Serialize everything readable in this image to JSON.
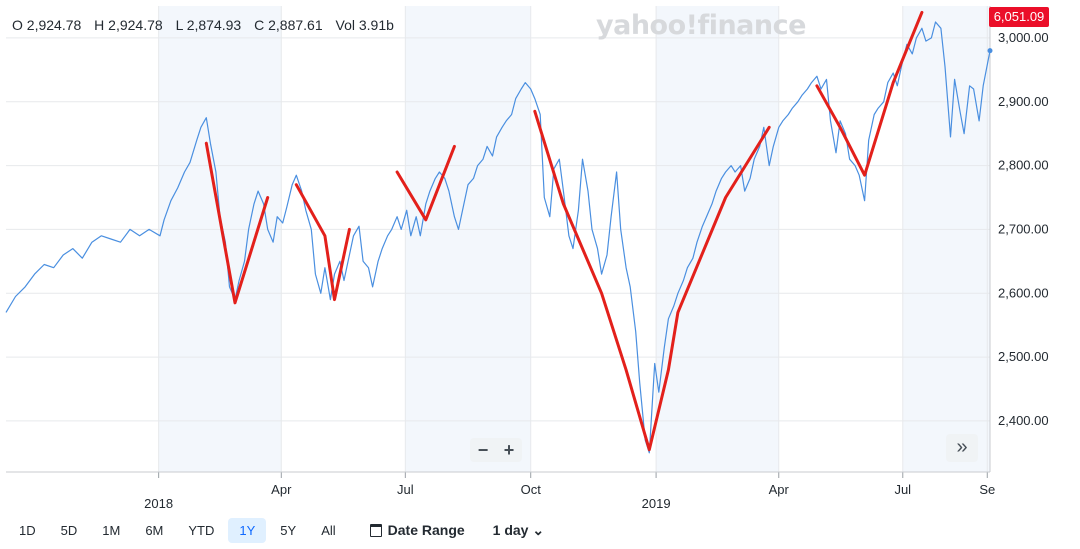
{
  "ohlc": {
    "open": "O 2,924.78",
    "high": "H 2,924.78",
    "low": "L 2,874.93",
    "close": "C 2,887.61",
    "volume": "Vol 3.91b"
  },
  "watermark": "yahoo!finance",
  "price_badge": "6,051.09",
  "zoom": {
    "minus": "−",
    "plus": "+"
  },
  "expand_label": "»",
  "ranges": [
    {
      "label": "1D",
      "active": false
    },
    {
      "label": "5D",
      "active": false
    },
    {
      "label": "1M",
      "active": false
    },
    {
      "label": "6M",
      "active": false
    },
    {
      "label": "YTD",
      "active": false
    },
    {
      "label": "1Y",
      "active": true
    },
    {
      "label": "5Y",
      "active": false
    },
    {
      "label": "All",
      "active": false
    }
  ],
  "date_range_label": "Date Range",
  "interval_label": "1 day ⌄",
  "colors": {
    "line": "#4a8fe0",
    "annotation": "#e3201b",
    "shade": "#f3f7fc",
    "badge": "#eb0f29",
    "grid": "#e7e9ec"
  },
  "chart_data": {
    "type": "line",
    "ylim": [
      2320,
      3050
    ],
    "yticks": [
      {
        "v": 3000,
        "label": "3,000.00"
      },
      {
        "v": 2900,
        "label": "2,900.00"
      },
      {
        "v": 2800,
        "label": "2,800.00"
      },
      {
        "v": 2700,
        "label": "2,700.00"
      },
      {
        "v": 2600,
        "label": "2,600.00"
      },
      {
        "v": 2500,
        "label": "2,500.00"
      },
      {
        "v": 2400,
        "label": "2,400.00"
      }
    ],
    "xlim": [
      "2017-09-11",
      "2019-09-03"
    ],
    "xticks": [
      {
        "date": "2018-01-01",
        "label": ""
      },
      {
        "date": "2018-04-01",
        "label": "Apr"
      },
      {
        "date": "2018-07-01",
        "label": "Jul"
      },
      {
        "date": "2018-10-01",
        "label": "Oct"
      },
      {
        "date": "2019-01-01",
        "label": ""
      },
      {
        "date": "2019-04-01",
        "label": "Apr"
      },
      {
        "date": "2019-07-01",
        "label": "Jul"
      },
      {
        "date": "2019-09-01",
        "label": "Se"
      }
    ],
    "years": [
      {
        "date": "2018-01-01",
        "label": "2018"
      },
      {
        "date": "2019-01-01",
        "label": "2019"
      }
    ],
    "shaded_ranges": [
      [
        "2018-01-01",
        "2018-04-01"
      ],
      [
        "2018-07-01",
        "2018-10-01"
      ],
      [
        "2019-01-01",
        "2019-04-01"
      ],
      [
        "2019-07-01",
        "2019-09-03"
      ]
    ],
    "series": [
      {
        "points": [
          [
            "2017-09-11",
            2570
          ],
          [
            "2017-09-18",
            2595
          ],
          [
            "2017-09-25",
            2610
          ],
          [
            "2017-10-02",
            2630
          ],
          [
            "2017-10-09",
            2645
          ],
          [
            "2017-10-16",
            2640
          ],
          [
            "2017-10-23",
            2660
          ],
          [
            "2017-10-30",
            2670
          ],
          [
            "2017-11-06",
            2655
          ],
          [
            "2017-11-13",
            2680
          ],
          [
            "2017-11-20",
            2690
          ],
          [
            "2017-11-27",
            2685
          ],
          [
            "2017-12-04",
            2680
          ],
          [
            "2017-12-11",
            2700
          ],
          [
            "2017-12-18",
            2690
          ],
          [
            "2017-12-25",
            2700
          ],
          [
            "2018-01-02",
            2690
          ],
          [
            "2018-01-05",
            2715
          ],
          [
            "2018-01-10",
            2745
          ],
          [
            "2018-01-15",
            2765
          ],
          [
            "2018-01-20",
            2790
          ],
          [
            "2018-01-24",
            2805
          ],
          [
            "2018-01-29",
            2840
          ],
          [
            "2018-02-01",
            2860
          ],
          [
            "2018-02-05",
            2875
          ],
          [
            "2018-02-08",
            2835
          ],
          [
            "2018-02-12",
            2790
          ],
          [
            "2018-02-15",
            2720
          ],
          [
            "2018-02-19",
            2680
          ],
          [
            "2018-02-22",
            2610
          ],
          [
            "2018-02-26",
            2590
          ],
          [
            "2018-03-01",
            2620
          ],
          [
            "2018-03-05",
            2650
          ],
          [
            "2018-03-08",
            2700
          ],
          [
            "2018-03-12",
            2740
          ],
          [
            "2018-03-15",
            2760
          ],
          [
            "2018-03-19",
            2740
          ],
          [
            "2018-03-22",
            2700
          ],
          [
            "2018-03-26",
            2680
          ],
          [
            "2018-03-29",
            2720
          ],
          [
            "2018-04-02",
            2710
          ],
          [
            "2018-04-05",
            2735
          ],
          [
            "2018-04-09",
            2770
          ],
          [
            "2018-04-12",
            2785
          ],
          [
            "2018-04-16",
            2760
          ],
          [
            "2018-04-19",
            2730
          ],
          [
            "2018-04-23",
            2700
          ],
          [
            "2018-04-26",
            2630
          ],
          [
            "2018-04-30",
            2600
          ],
          [
            "2018-05-03",
            2640
          ],
          [
            "2018-05-07",
            2590
          ],
          [
            "2018-05-10",
            2630
          ],
          [
            "2018-05-14",
            2650
          ],
          [
            "2018-05-17",
            2620
          ],
          [
            "2018-05-21",
            2660
          ],
          [
            "2018-05-24",
            2690
          ],
          [
            "2018-05-28",
            2705
          ],
          [
            "2018-05-31",
            2650
          ],
          [
            "2018-06-04",
            2640
          ],
          [
            "2018-06-07",
            2610
          ],
          [
            "2018-06-11",
            2650
          ],
          [
            "2018-06-14",
            2670
          ],
          [
            "2018-06-18",
            2690
          ],
          [
            "2018-06-21",
            2700
          ],
          [
            "2018-06-25",
            2720
          ],
          [
            "2018-06-28",
            2700
          ],
          [
            "2018-07-02",
            2730
          ],
          [
            "2018-07-05",
            2690
          ],
          [
            "2018-07-09",
            2720
          ],
          [
            "2018-07-12",
            2690
          ],
          [
            "2018-07-16",
            2740
          ],
          [
            "2018-07-19",
            2760
          ],
          [
            "2018-07-23",
            2780
          ],
          [
            "2018-07-26",
            2790
          ],
          [
            "2018-07-30",
            2780
          ],
          [
            "2018-08-02",
            2760
          ],
          [
            "2018-08-06",
            2720
          ],
          [
            "2018-08-09",
            2700
          ],
          [
            "2018-08-13",
            2740
          ],
          [
            "2018-08-16",
            2770
          ],
          [
            "2018-08-20",
            2780
          ],
          [
            "2018-08-23",
            2800
          ],
          [
            "2018-08-27",
            2810
          ],
          [
            "2018-08-30",
            2830
          ],
          [
            "2018-09-03",
            2815
          ],
          [
            "2018-09-06",
            2845
          ],
          [
            "2018-09-10",
            2860
          ],
          [
            "2018-09-13",
            2870
          ],
          [
            "2018-09-17",
            2880
          ],
          [
            "2018-09-20",
            2905
          ],
          [
            "2018-09-24",
            2920
          ],
          [
            "2018-09-27",
            2930
          ],
          [
            "2018-10-01",
            2920
          ],
          [
            "2018-10-04",
            2905
          ],
          [
            "2018-10-08",
            2880
          ],
          [
            "2018-10-11",
            2750
          ],
          [
            "2018-10-15",
            2720
          ],
          [
            "2018-10-18",
            2795
          ],
          [
            "2018-10-22",
            2810
          ],
          [
            "2018-10-25",
            2760
          ],
          [
            "2018-10-29",
            2690
          ],
          [
            "2018-11-01",
            2670
          ],
          [
            "2018-11-05",
            2730
          ],
          [
            "2018-11-08",
            2810
          ],
          [
            "2018-11-12",
            2760
          ],
          [
            "2018-11-15",
            2700
          ],
          [
            "2018-11-19",
            2670
          ],
          [
            "2018-11-22",
            2630
          ],
          [
            "2018-11-26",
            2660
          ],
          [
            "2018-11-29",
            2720
          ],
          [
            "2018-12-03",
            2790
          ],
          [
            "2018-12-06",
            2700
          ],
          [
            "2018-12-10",
            2640
          ],
          [
            "2018-12-13",
            2610
          ],
          [
            "2018-12-17",
            2540
          ],
          [
            "2018-12-20",
            2460
          ],
          [
            "2018-12-24",
            2370
          ],
          [
            "2018-12-27",
            2350
          ],
          [
            "2018-12-31",
            2490
          ],
          [
            "2019-01-03",
            2445
          ],
          [
            "2019-01-07",
            2515
          ],
          [
            "2019-01-10",
            2560
          ],
          [
            "2019-01-14",
            2580
          ],
          [
            "2019-01-17",
            2600
          ],
          [
            "2019-01-21",
            2620
          ],
          [
            "2019-01-24",
            2640
          ],
          [
            "2019-01-28",
            2655
          ],
          [
            "2019-01-31",
            2680
          ],
          [
            "2019-02-04",
            2705
          ],
          [
            "2019-02-07",
            2720
          ],
          [
            "2019-02-11",
            2740
          ],
          [
            "2019-02-14",
            2760
          ],
          [
            "2019-02-18",
            2780
          ],
          [
            "2019-02-21",
            2790
          ],
          [
            "2019-02-25",
            2800
          ],
          [
            "2019-02-28",
            2790
          ],
          [
            "2019-03-04",
            2800
          ],
          [
            "2019-03-07",
            2760
          ],
          [
            "2019-03-11",
            2780
          ],
          [
            "2019-03-14",
            2810
          ],
          [
            "2019-03-18",
            2830
          ],
          [
            "2019-03-21",
            2860
          ],
          [
            "2019-03-25",
            2800
          ],
          [
            "2019-03-28",
            2830
          ],
          [
            "2019-04-01",
            2860
          ],
          [
            "2019-04-04",
            2870
          ],
          [
            "2019-04-08",
            2880
          ],
          [
            "2019-04-11",
            2890
          ],
          [
            "2019-04-15",
            2900
          ],
          [
            "2019-04-18",
            2910
          ],
          [
            "2019-04-22",
            2920
          ],
          [
            "2019-04-25",
            2930
          ],
          [
            "2019-04-29",
            2940
          ],
          [
            "2019-05-02",
            2920
          ],
          [
            "2019-05-06",
            2935
          ],
          [
            "2019-05-09",
            2870
          ],
          [
            "2019-05-13",
            2820
          ],
          [
            "2019-05-16",
            2870
          ],
          [
            "2019-05-20",
            2850
          ],
          [
            "2019-05-23",
            2810
          ],
          [
            "2019-05-27",
            2800
          ],
          [
            "2019-05-30",
            2785
          ],
          [
            "2019-06-03",
            2745
          ],
          [
            "2019-06-06",
            2840
          ],
          [
            "2019-06-10",
            2880
          ],
          [
            "2019-06-13",
            2890
          ],
          [
            "2019-06-17",
            2900
          ],
          [
            "2019-06-20",
            2930
          ],
          [
            "2019-06-24",
            2945
          ],
          [
            "2019-06-27",
            2925
          ],
          [
            "2019-07-01",
            2965
          ],
          [
            "2019-07-04",
            2990
          ],
          [
            "2019-07-08",
            2975
          ],
          [
            "2019-07-11",
            3000
          ],
          [
            "2019-07-15",
            3015
          ],
          [
            "2019-07-18",
            2995
          ],
          [
            "2019-07-22",
            3000
          ],
          [
            "2019-07-25",
            3025
          ],
          [
            "2019-07-29",
            3015
          ],
          [
            "2019-08-01",
            2955
          ],
          [
            "2019-08-05",
            2845
          ],
          [
            "2019-08-08",
            2935
          ],
          [
            "2019-08-12",
            2885
          ],
          [
            "2019-08-15",
            2850
          ],
          [
            "2019-08-19",
            2925
          ],
          [
            "2019-08-22",
            2920
          ],
          [
            "2019-08-26",
            2870
          ],
          [
            "2019-08-29",
            2925
          ],
          [
            "2019-09-03",
            2980
          ]
        ]
      }
    ],
    "annotations": [
      [
        [
          "2018-02-05",
          2835
        ],
        [
          "2018-02-26",
          2585
        ],
        [
          "2018-03-22",
          2750
        ]
      ],
      [
        [
          "2018-04-12",
          2770
        ],
        [
          "2018-05-03",
          2690
        ],
        [
          "2018-05-10",
          2590
        ],
        [
          "2018-05-21",
          2700
        ]
      ],
      [
        [
          "2018-06-25",
          2790
        ],
        [
          "2018-07-16",
          2715
        ],
        [
          "2018-08-06",
          2830
        ]
      ],
      [
        [
          "2018-10-04",
          2885
        ],
        [
          "2018-10-25",
          2740
        ],
        [
          "2018-11-22",
          2600
        ],
        [
          "2018-12-10",
          2480
        ],
        [
          "2018-12-27",
          2355
        ],
        [
          "2019-01-10",
          2480
        ],
        [
          "2019-01-17",
          2570
        ],
        [
          "2019-02-21",
          2750
        ],
        [
          "2019-03-25",
          2860
        ]
      ],
      [
        [
          "2019-04-29",
          2925
        ],
        [
          "2019-05-16",
          2860
        ],
        [
          "2019-06-03",
          2785
        ],
        [
          "2019-06-24",
          2930
        ],
        [
          "2019-07-15",
          3040
        ]
      ]
    ]
  }
}
